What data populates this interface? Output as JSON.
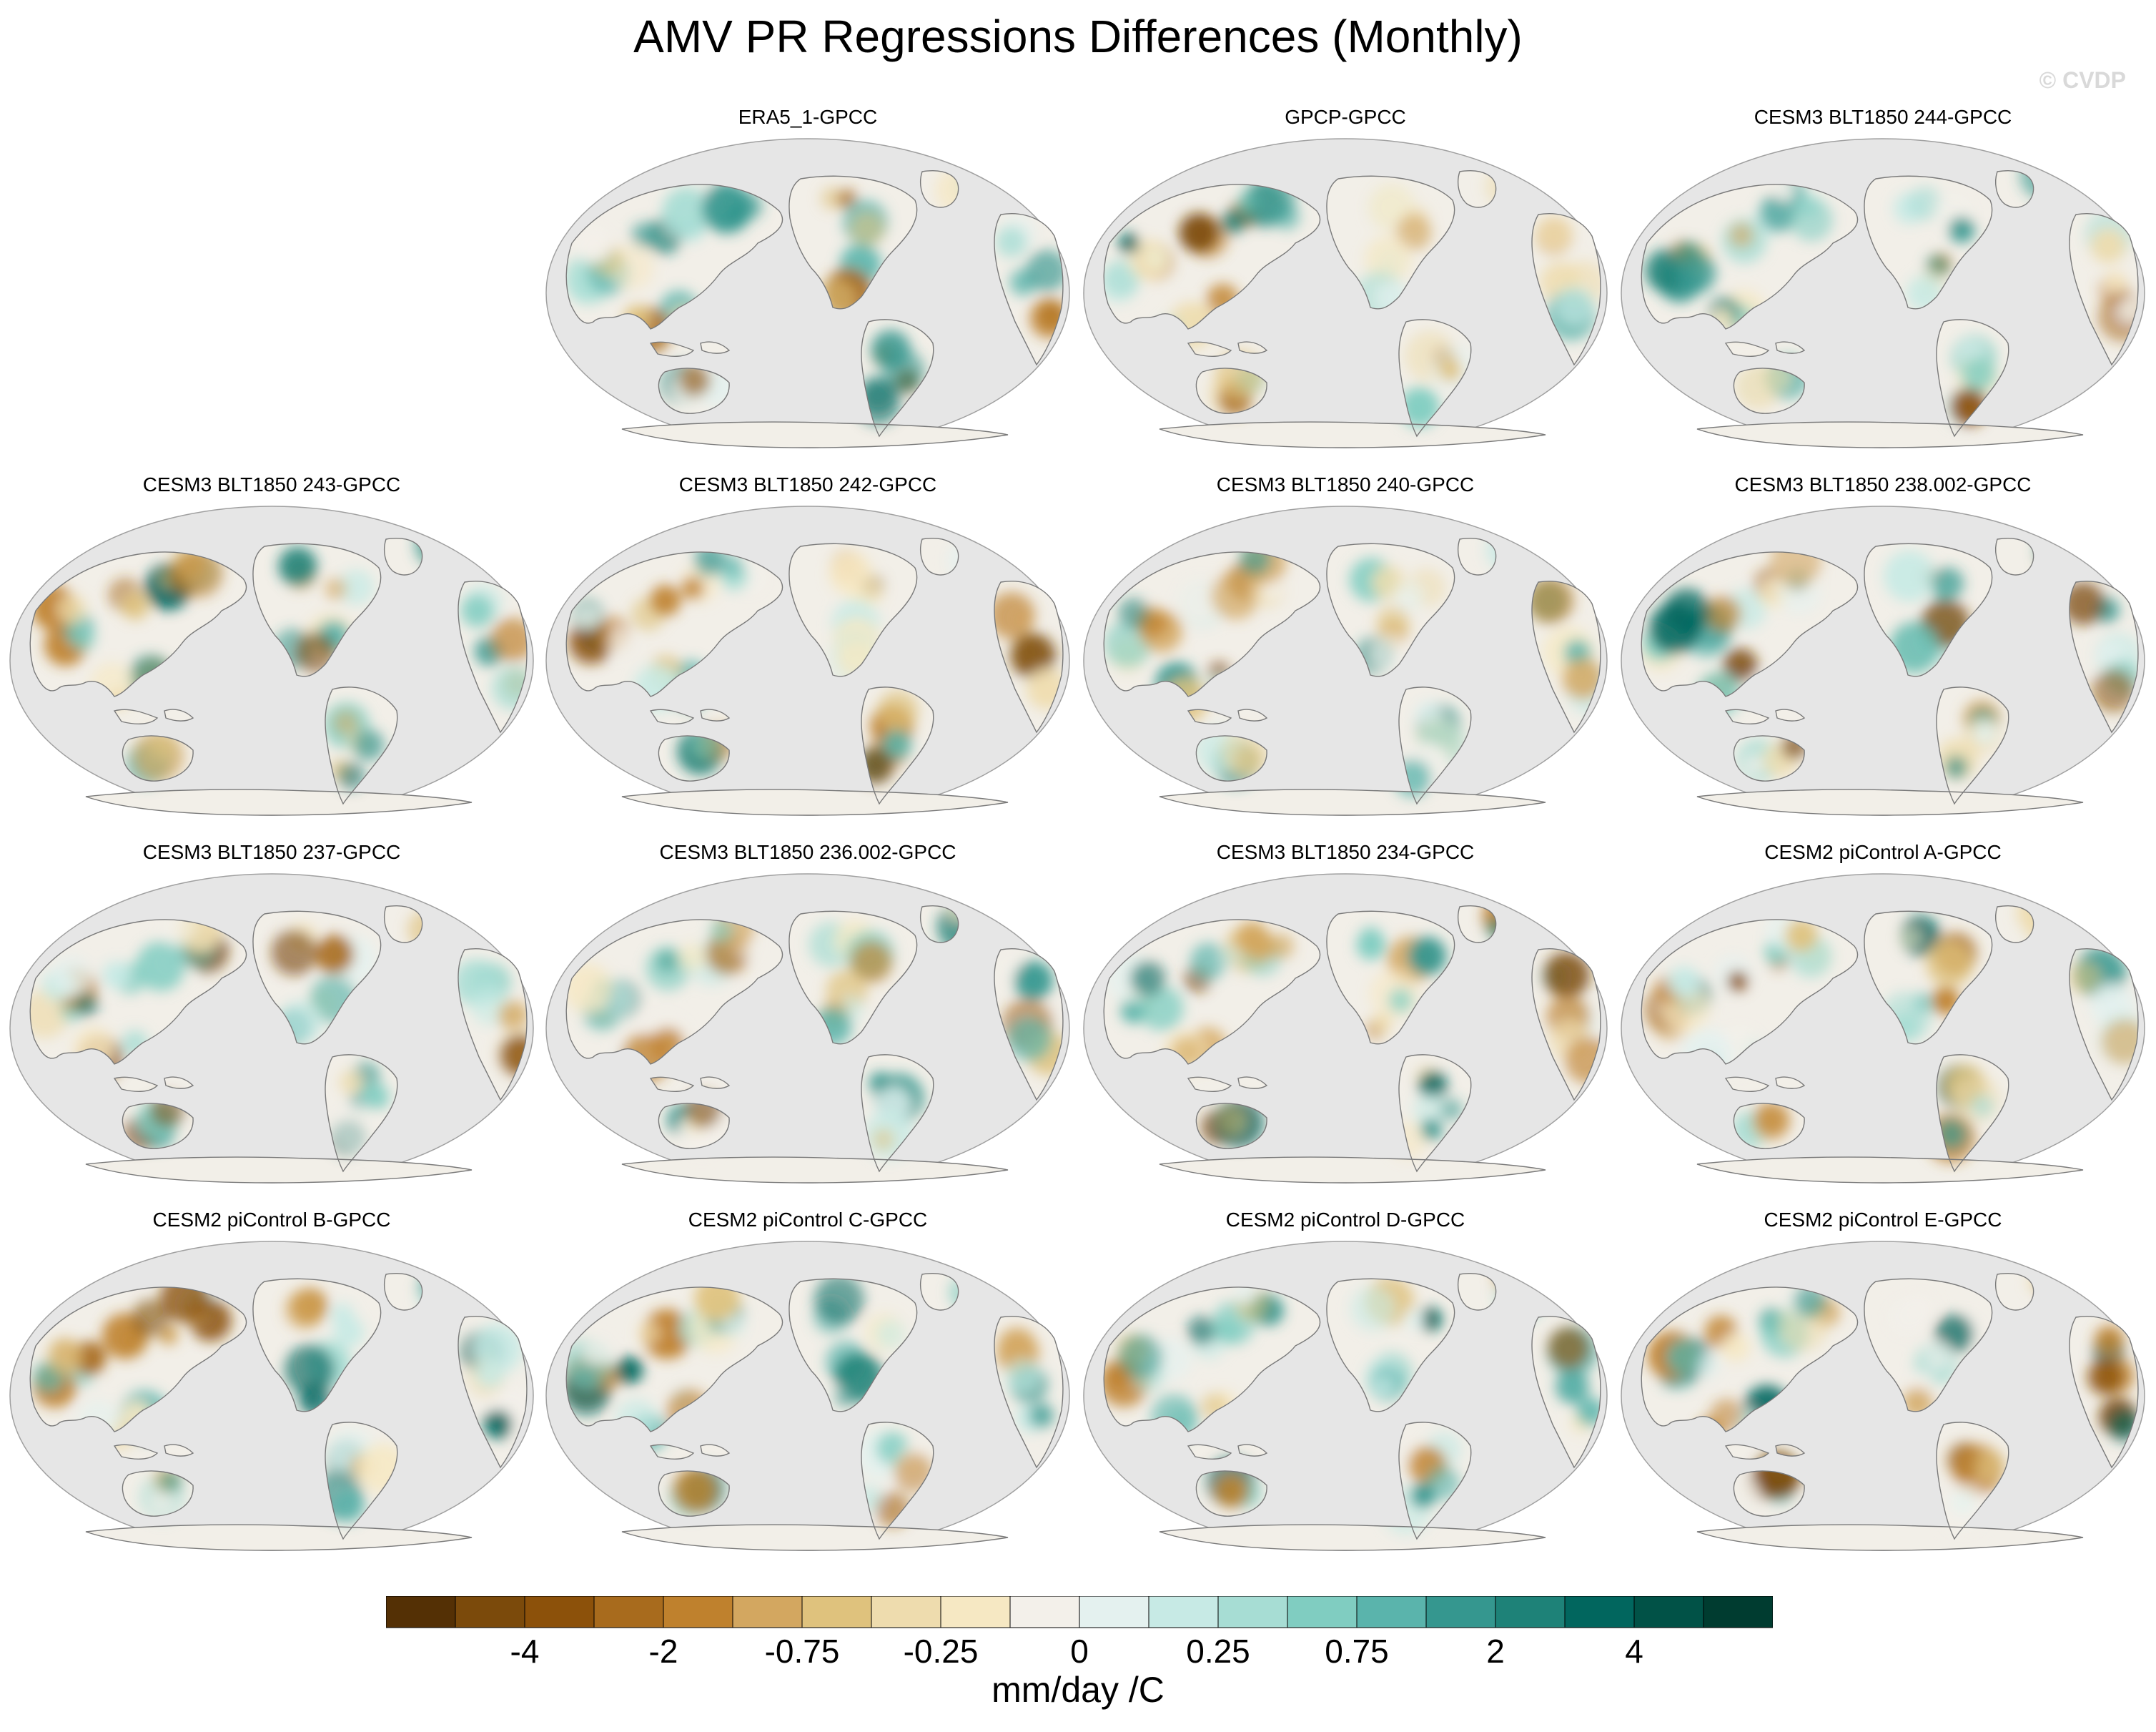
{
  "title": "AMV PR Regressions Differences (Monthly)",
  "watermark": "© CVDP",
  "panels": [
    {
      "label": "ERA5_1-GPCC",
      "col": 1,
      "row": 0
    },
    {
      "label": "GPCP-GPCC",
      "col": 2,
      "row": 0
    },
    {
      "label": "CESM3 BLT1850 244-GPCC",
      "col": 3,
      "row": 0
    },
    {
      "label": "CESM3 BLT1850 243-GPCC",
      "col": 0,
      "row": 1
    },
    {
      "label": "CESM3 BLT1850 242-GPCC",
      "col": 1,
      "row": 1
    },
    {
      "label": "CESM3 BLT1850 240-GPCC",
      "col": 2,
      "row": 1
    },
    {
      "label": "CESM3 BLT1850 238.002-GPCC",
      "col": 3,
      "row": 1
    },
    {
      "label": "CESM3 BLT1850 237-GPCC",
      "col": 0,
      "row": 2
    },
    {
      "label": "CESM3 BLT1850 236.002-GPCC",
      "col": 1,
      "row": 2
    },
    {
      "label": "CESM3 BLT1850 234-GPCC",
      "col": 2,
      "row": 2
    },
    {
      "label": "CESM2 piControl A-GPCC",
      "col": 3,
      "row": 2
    },
    {
      "label": "CESM2 piControl B-GPCC",
      "col": 0,
      "row": 3
    },
    {
      "label": "CESM2 piControl C-GPCC",
      "col": 1,
      "row": 3
    },
    {
      "label": "CESM2 piControl D-GPCC",
      "col": 2,
      "row": 3
    },
    {
      "label": "CESM2 piControl E-GPCC",
      "col": 3,
      "row": 3
    }
  ],
  "colorbar": {
    "colors": [
      "#543005",
      "#7b4a0b",
      "#8c510a",
      "#a86b1d",
      "#bf812d",
      "#d3a760",
      "#dfc27d",
      "#eedcae",
      "#f6e8c3",
      "#f3f0ea",
      "#e4f1ef",
      "#c7eae5",
      "#a7ddd4",
      "#80cdc1",
      "#5ab4ac",
      "#35978f",
      "#1e8278",
      "#01665e",
      "#015247",
      "#003c30"
    ],
    "tick_labels": [
      "-4",
      "-2",
      "-0.75",
      "-0.25",
      "0",
      "0.25",
      "0.75",
      "2",
      "4"
    ],
    "units": "mm/day /C"
  },
  "map_style": {
    "ocean": "#e6e6e6",
    "land_neutral": "#f2efe8",
    "coast": "#7a7a7a",
    "border": "#a0a0a0"
  }
}
